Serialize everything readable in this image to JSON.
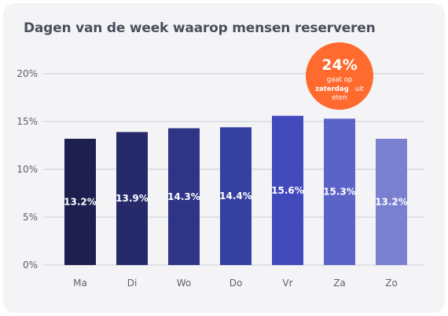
{
  "chart_data": {
    "type": "bar",
    "title": "Dagen van de week waarop mensen reserveren",
    "categories": [
      "Ma",
      "Di",
      "Wo",
      "Do",
      "Vr",
      "Za",
      "Zo"
    ],
    "values": [
      13.2,
      13.9,
      14.3,
      14.4,
      15.6,
      15.3,
      13.2
    ],
    "value_labels": [
      "13.2%",
      "13.9%",
      "14.3%",
      "14.4%",
      "15.6%",
      "15.3%",
      "13.2%"
    ],
    "yticks": [
      "0%",
      "5%",
      "10%",
      "15%",
      "20%"
    ],
    "ylim": [
      0,
      20
    ],
    "grid": true,
    "bar_colors": [
      "#1d1f4e",
      "#262a6b",
      "#2e3587",
      "#3640a0",
      "#4149bd",
      "#5c63c6",
      "#7a80d0"
    ],
    "annotation": {
      "value": "24%",
      "line1": "gaat op",
      "line2_bold": "zaterdag",
      "line2_rest": "uit",
      "line3": "eten",
      "color": "#ff6a2f"
    }
  }
}
